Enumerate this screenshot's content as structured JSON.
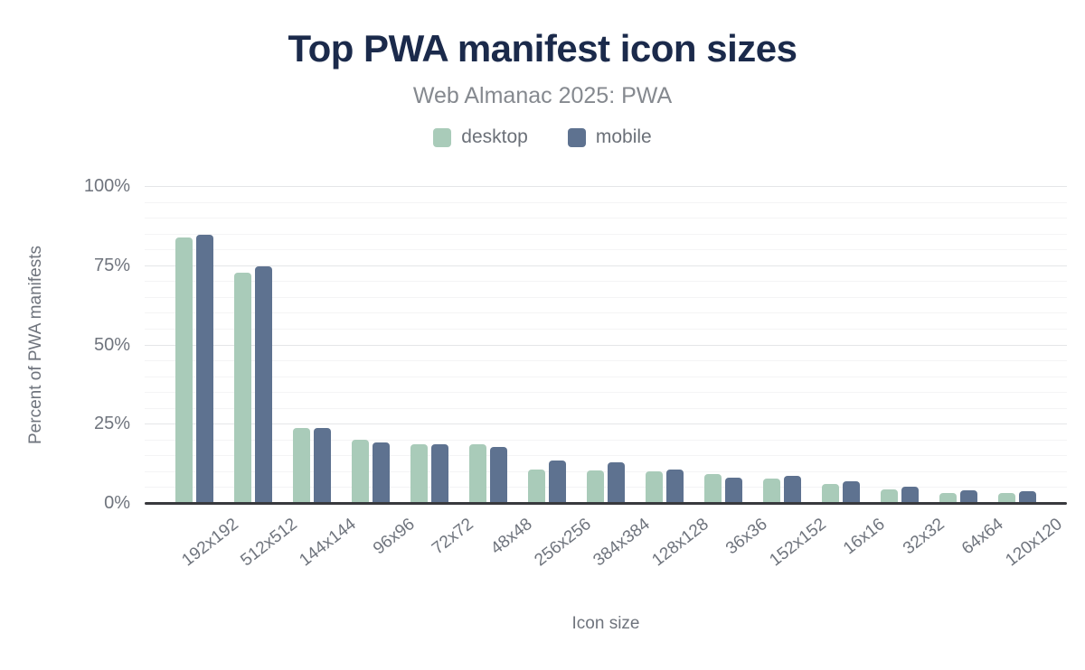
{
  "header": {
    "title": "Top PWA manifest icon sizes",
    "subtitle": "Web Almanac 2025: PWA"
  },
  "legend": [
    {
      "label": "desktop",
      "color": "#a9cbb9"
    },
    {
      "label": "mobile",
      "color": "#5e7290"
    }
  ],
  "colors": {
    "title-color": "#1b2a4b",
    "subtitle-color": "#85898f",
    "legend-text": "#6b7078",
    "axis-text": "#6f747d",
    "grid-minor": "#f4f4f5",
    "grid-major": "#e5e6e8",
    "axis-line": "#38393d",
    "desktop-bar": "#a9cbb9",
    "mobile-bar": "#5e7290"
  },
  "chart_data": {
    "type": "bar",
    "title": "Top PWA manifest icon sizes",
    "subtitle": "Web Almanac 2025: PWA",
    "xlabel": "Icon size",
    "ylabel": "Percent of PWA manifests",
    "categories": [
      "192x192",
      "512x512",
      "144x144",
      "96x96",
      "72x72",
      "48x48",
      "256x256",
      "384x384",
      "128x128",
      "36x36",
      "152x152",
      "16x16",
      "32x32",
      "64x64",
      "120x120"
    ],
    "series": [
      {
        "name": "desktop",
        "color": "#a9cbb9",
        "values": [
          84.0,
          73.0,
          24.0,
          20.3,
          18.9,
          18.7,
          10.9,
          10.5,
          10.3,
          9.5,
          8.1,
          6.3,
          4.6,
          3.5,
          3.4
        ]
      },
      {
        "name": "mobile",
        "color": "#5e7290",
        "values": [
          84.8,
          74.9,
          23.9,
          19.4,
          18.7,
          18.0,
          13.7,
          13.0,
          10.8,
          8.3,
          8.7,
          7.0,
          5.3,
          4.2,
          4.1
        ]
      }
    ],
    "ylim": [
      0,
      100
    ],
    "yticks": [
      0,
      25,
      50,
      75,
      100
    ],
    "ytick_labels": [
      "0%",
      "25%",
      "50%",
      "75%",
      "100%"
    ],
    "minor_grid_step_pct": 5,
    "grid": "on",
    "legend_position": "top"
  }
}
